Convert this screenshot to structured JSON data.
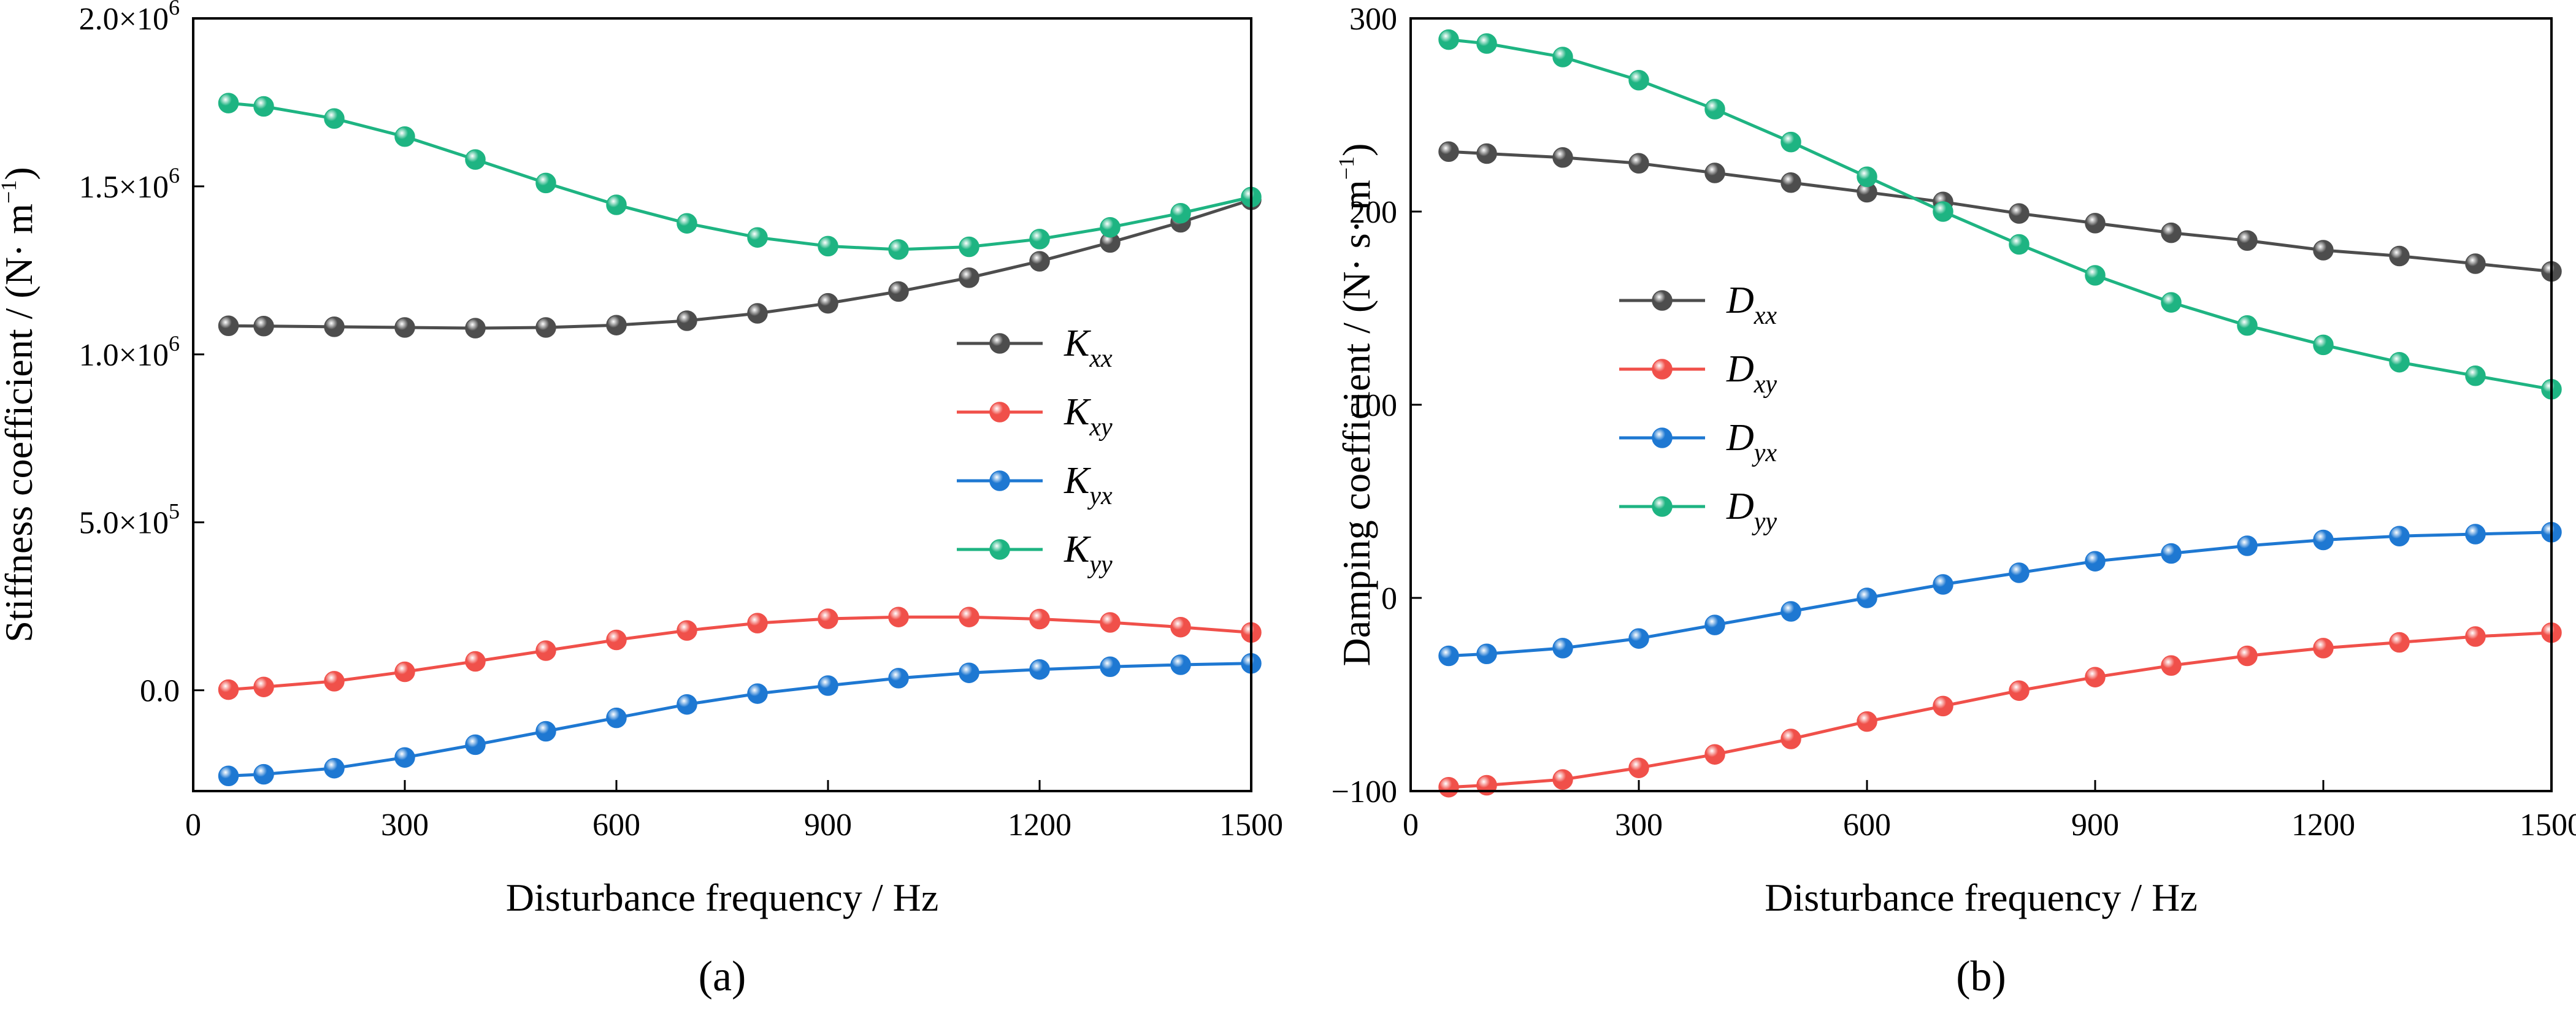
{
  "chart_data": [
    {
      "type": "line",
      "panel_label": "(a)",
      "xlabel": "Disturbance frequency / Hz",
      "ylabel": "Stiffness coefficient / (N· m",
      "ylabel_sup": "−1",
      "ylabel_close": ")",
      "xlim": [
        0,
        1500
      ],
      "ylim": [
        -300000,
        2000000
      ],
      "xticks": [
        0,
        300,
        600,
        900,
        1200,
        1500
      ],
      "xtick_labels": [
        "0",
        "300",
        "600",
        "900",
        "1200",
        "1500"
      ],
      "yticks": [
        0,
        500000,
        1000000,
        1500000,
        2000000
      ],
      "ytick_labels": [
        {
          "main": "0.0",
          "sup": ""
        },
        {
          "main": "5.0×10",
          "sup": "5"
        },
        {
          "main": "1.0×10",
          "sup": "6"
        },
        {
          "main": "1.5×10",
          "sup": "6"
        },
        {
          "main": "2.0×10",
          "sup": "6"
        }
      ],
      "legend_position": "center-right",
      "x": [
        50,
        100,
        200,
        300,
        400,
        500,
        600,
        700,
        800,
        900,
        1000,
        1100,
        1200,
        1300,
        1400,
        1500
      ],
      "series": [
        {
          "name": "K",
          "sub": "xx",
          "color": "#4d4d4d",
          "values": [
            1085000,
            1084000,
            1082000,
            1080000,
            1078000,
            1080000,
            1087000,
            1100000,
            1122000,
            1152000,
            1187000,
            1228000,
            1277000,
            1333000,
            1393000,
            1460000
          ]
        },
        {
          "name": "K",
          "sub": "xy",
          "color": "#f0504a",
          "values": [
            2000,
            10000,
            27000,
            55000,
            86000,
            118000,
            150000,
            178000,
            200000,
            213000,
            218000,
            218000,
            212000,
            202000,
            188000,
            172000
          ]
        },
        {
          "name": "K",
          "sub": "yx",
          "color": "#1e78d2",
          "values": [
            -255000,
            -250000,
            -232000,
            -200000,
            -162000,
            -122000,
            -82000,
            -42000,
            -10000,
            14000,
            36000,
            52000,
            62000,
            70000,
            76000,
            80000
          ]
        },
        {
          "name": "K",
          "sub": "yy",
          "color": "#1eb482",
          "values": [
            1748000,
            1738000,
            1702000,
            1648000,
            1580000,
            1510000,
            1445000,
            1390000,
            1348000,
            1322000,
            1312000,
            1320000,
            1343000,
            1378000,
            1420000,
            1468000
          ]
        }
      ]
    },
    {
      "type": "line",
      "panel_label": "(b)",
      "xlabel": "Disturbance frequency / Hz",
      "ylabel": "Damping coefficient / (N· s· m",
      "ylabel_sup": "−1",
      "ylabel_close": ")",
      "xlim": [
        0,
        1500
      ],
      "ylim": [
        -100,
        300
      ],
      "xticks": [
        0,
        300,
        600,
        900,
        1200,
        1500
      ],
      "xtick_labels": [
        "0",
        "300",
        "600",
        "900",
        "1200",
        "1500"
      ],
      "yticks": [
        -100,
        0,
        100,
        200,
        300
      ],
      "ytick_labels": [
        {
          "main": "−100",
          "sup": ""
        },
        {
          "main": "0",
          "sup": ""
        },
        {
          "main": "100",
          "sup": ""
        },
        {
          "main": "200",
          "sup": ""
        },
        {
          "main": "300",
          "sup": ""
        }
      ],
      "legend_position": "center-left",
      "x": [
        50,
        100,
        200,
        300,
        400,
        500,
        600,
        700,
        800,
        900,
        1000,
        1100,
        1200,
        1300,
        1400,
        1500
      ],
      "series": [
        {
          "name": "D",
          "sub": "xx",
          "color": "#4d4d4d",
          "values": [
            231,
            230,
            228,
            225,
            220,
            215,
            210,
            205,
            199,
            194,
            189,
            185,
            180,
            177,
            173,
            169
          ]
        },
        {
          "name": "D",
          "sub": "xy",
          "color": "#f0504a",
          "values": [
            -98,
            -97,
            -94,
            -88,
            -81,
            -73,
            -64,
            -56,
            -48,
            -41,
            -35,
            -30,
            -26,
            -23,
            -20,
            -18
          ]
        },
        {
          "name": "D",
          "sub": "yx",
          "color": "#1e78d2",
          "values": [
            -30,
            -29,
            -26,
            -21,
            -14,
            -7,
            0,
            7,
            13,
            19,
            23,
            27,
            30,
            32,
            33,
            34
          ]
        },
        {
          "name": "D",
          "sub": "yy",
          "color": "#1eb482",
          "values": [
            289,
            287,
            280,
            268,
            253,
            236,
            218,
            200,
            183,
            167,
            153,
            141,
            131,
            122,
            115,
            108
          ]
        }
      ]
    }
  ]
}
